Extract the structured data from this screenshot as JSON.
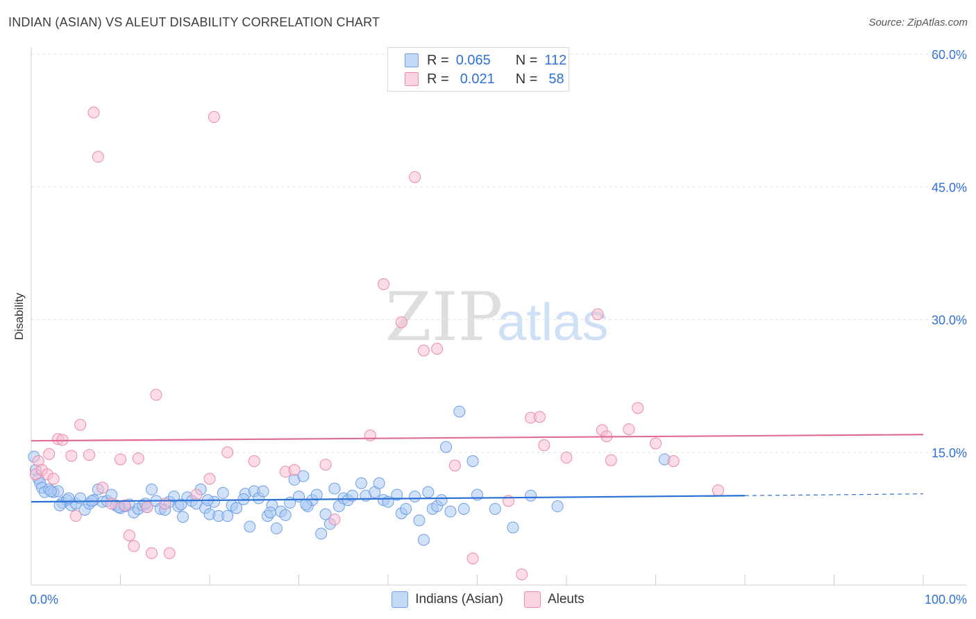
{
  "title": "INDIAN (ASIAN) VS ALEUT DISABILITY CORRELATION CHART",
  "source": "Source: ZipAtlas.com",
  "watermark": {
    "zip": "ZIP",
    "atlas": "atlas"
  },
  "legend": {
    "r_label": "R =",
    "n_label": "N =",
    "rows": [
      {
        "r": "0.065",
        "n": "112",
        "color": "#a9c8f2",
        "border": "#6d9ee6"
      },
      {
        "r": "0.021",
        "n": "58",
        "color": "#f7bfd3",
        "border": "#e98aaa"
      }
    ]
  },
  "bottom_legend": [
    "Indians (Asian)",
    "Aleuts"
  ],
  "chart_data": {
    "type": "scatter",
    "title": "INDIAN (ASIAN) VS ALEUT DISABILITY CORRELATION CHART",
    "xlabel": "",
    "ylabel": "Disability",
    "xlim": [
      0,
      100
    ],
    "ylim": [
      0,
      60
    ],
    "x_tick_labels": [
      "0.0%",
      "100.0%"
    ],
    "y_ticks": [
      15,
      30,
      45,
      60
    ],
    "y_tick_labels": [
      "15.0%",
      "30.0%",
      "45.0%",
      "60.0%"
    ],
    "grid": true,
    "legend_position": "top-center",
    "series": [
      {
        "name": "Indians (Asian)",
        "color": "#6d9ee6",
        "fill": "#a9c8f2",
        "line_color": "#2a6fd4",
        "trend": {
          "x0": 0,
          "y0": 9.4,
          "x1": 80,
          "y1": 10.1,
          "dash_to": 100,
          "dash_y": 10.3
        },
        "points": [
          [
            0.3,
            14.5
          ],
          [
            0.5,
            13.0
          ],
          [
            0.8,
            12.0
          ],
          [
            1.0,
            11.5
          ],
          [
            1.2,
            11.0
          ],
          [
            1.5,
            10.5
          ],
          [
            2.0,
            10.8
          ],
          [
            2.5,
            10.5
          ],
          [
            3.0,
            10.6
          ],
          [
            3.5,
            9.3
          ],
          [
            4.0,
            9.6
          ],
          [
            4.5,
            9.0
          ],
          [
            5.0,
            9.2
          ],
          [
            5.5,
            9.8
          ],
          [
            6.0,
            8.5
          ],
          [
            6.5,
            9.2
          ],
          [
            7.0,
            9.6
          ],
          [
            7.5,
            10.8
          ],
          [
            8.0,
            9.4
          ],
          [
            8.5,
            9.5
          ],
          [
            9.0,
            10.2
          ],
          [
            9.5,
            9.0
          ],
          [
            10.0,
            8.7
          ],
          [
            10.5,
            8.9
          ],
          [
            11.0,
            9.1
          ],
          [
            11.5,
            8.2
          ],
          [
            12.0,
            8.6
          ],
          [
            12.5,
            9.0
          ],
          [
            13.0,
            8.8
          ],
          [
            13.5,
            10.8
          ],
          [
            14.0,
            9.5
          ],
          [
            14.5,
            8.6
          ],
          [
            15.0,
            8.5
          ],
          [
            15.5,
            9.4
          ],
          [
            16.0,
            10.0
          ],
          [
            16.5,
            8.9
          ],
          [
            17.0,
            7.7
          ],
          [
            17.5,
            9.9
          ],
          [
            18.0,
            9.5
          ],
          [
            18.5,
            9.2
          ],
          [
            19.0,
            10.8
          ],
          [
            19.5,
            8.7
          ],
          [
            20.0,
            8.0
          ],
          [
            20.5,
            9.4
          ],
          [
            21.0,
            7.8
          ],
          [
            21.5,
            10.4
          ],
          [
            22.0,
            7.8
          ],
          [
            22.5,
            9.0
          ],
          [
            23.0,
            8.7
          ],
          [
            24.0,
            10.3
          ],
          [
            24.5,
            6.6
          ],
          [
            25.0,
            10.6
          ],
          [
            25.5,
            9.8
          ],
          [
            26.0,
            10.6
          ],
          [
            26.5,
            7.8
          ],
          [
            27.0,
            9.0
          ],
          [
            27.5,
            6.4
          ],
          [
            28.0,
            8.3
          ],
          [
            28.5,
            7.9
          ],
          [
            29.0,
            9.3
          ],
          [
            29.5,
            11.9
          ],
          [
            30.0,
            10.0
          ],
          [
            30.5,
            12.3
          ],
          [
            31.0,
            8.9
          ],
          [
            31.5,
            9.6
          ],
          [
            32.0,
            10.2
          ],
          [
            32.5,
            5.8
          ],
          [
            33.0,
            8.0
          ],
          [
            33.5,
            6.9
          ],
          [
            34.0,
            10.9
          ],
          [
            34.5,
            8.9
          ],
          [
            35.0,
            9.8
          ],
          [
            35.5,
            9.6
          ],
          [
            37.0,
            11.5
          ],
          [
            37.5,
            10.1
          ],
          [
            38.5,
            10.5
          ],
          [
            39.0,
            11.5
          ],
          [
            39.5,
            9.6
          ],
          [
            40.0,
            9.4
          ],
          [
            41.0,
            10.2
          ],
          [
            41.5,
            8.1
          ],
          [
            42.0,
            8.6
          ],
          [
            43.0,
            10.0
          ],
          [
            43.5,
            7.3
          ],
          [
            44.0,
            5.1
          ],
          [
            44.5,
            10.5
          ],
          [
            45.0,
            8.6
          ],
          [
            45.5,
            8.9
          ],
          [
            46.0,
            9.6
          ],
          [
            46.5,
            15.6
          ],
          [
            47.0,
            8.3
          ],
          [
            48.0,
            19.6
          ],
          [
            48.5,
            8.6
          ],
          [
            49.5,
            14.0
          ],
          [
            50.0,
            10.2
          ],
          [
            52.0,
            8.6
          ],
          [
            54.0,
            6.5
          ],
          [
            56.0,
            10.1
          ],
          [
            59.0,
            8.9
          ],
          [
            71.0,
            14.2
          ],
          [
            2.2,
            10.6
          ],
          [
            3.2,
            9.0
          ],
          [
            4.2,
            9.8
          ],
          [
            6.8,
            9.5
          ],
          [
            9.8,
            8.8
          ],
          [
            12.8,
            9.2
          ],
          [
            16.8,
            9.1
          ],
          [
            19.8,
            9.6
          ],
          [
            23.8,
            9.7
          ],
          [
            26.8,
            8.2
          ],
          [
            30.8,
            9.1
          ],
          [
            36.0,
            10.1
          ]
        ]
      },
      {
        "name": "Aleuts",
        "color": "#e98aaa",
        "fill": "#f7bfd3",
        "line_color": "#e06b95",
        "trend": {
          "x0": 0,
          "y0": 16.3,
          "x1": 100,
          "y1": 17.0
        },
        "points": [
          [
            0.5,
            12.5
          ],
          [
            0.8,
            14.0
          ],
          [
            1.2,
            13.0
          ],
          [
            1.8,
            12.5
          ],
          [
            2.0,
            14.8
          ],
          [
            2.5,
            12.0
          ],
          [
            3.0,
            16.5
          ],
          [
            3.5,
            16.4
          ],
          [
            4.5,
            14.6
          ],
          [
            5.0,
            7.8
          ],
          [
            5.5,
            18.1
          ],
          [
            6.5,
            14.7
          ],
          [
            7.0,
            53.4
          ],
          [
            7.5,
            48.4
          ],
          [
            8.0,
            11.0
          ],
          [
            9.0,
            9.2
          ],
          [
            10.0,
            14.2
          ],
          [
            10.5,
            9.0
          ],
          [
            11.0,
            5.6
          ],
          [
            11.5,
            4.4
          ],
          [
            12.0,
            14.3
          ],
          [
            13.0,
            8.8
          ],
          [
            13.5,
            3.6
          ],
          [
            14.0,
            21.5
          ],
          [
            15.0,
            9.2
          ],
          [
            15.5,
            3.6
          ],
          [
            18.5,
            10.2
          ],
          [
            20.0,
            12.0
          ],
          [
            20.5,
            52.9
          ],
          [
            22.0,
            15.0
          ],
          [
            25.0,
            14.0
          ],
          [
            28.5,
            12.8
          ],
          [
            29.5,
            13.0
          ],
          [
            33.0,
            13.6
          ],
          [
            34.0,
            7.4
          ],
          [
            38.0,
            16.9
          ],
          [
            39.5,
            34.0
          ],
          [
            41.5,
            29.7
          ],
          [
            43.0,
            46.1
          ],
          [
            44.0,
            26.5
          ],
          [
            45.5,
            26.7
          ],
          [
            47.5,
            13.5
          ],
          [
            49.5,
            3.0
          ],
          [
            53.5,
            9.5
          ],
          [
            55.0,
            1.2
          ],
          [
            56.0,
            18.9
          ],
          [
            57.0,
            19.0
          ],
          [
            57.5,
            15.8
          ],
          [
            60.0,
            14.4
          ],
          [
            63.5,
            30.6
          ],
          [
            64.0,
            17.5
          ],
          [
            64.5,
            16.8
          ],
          [
            65.0,
            14.1
          ],
          [
            67.0,
            17.6
          ],
          [
            68.0,
            20.0
          ],
          [
            70.0,
            16.0
          ],
          [
            72.0,
            14.0
          ],
          [
            77.0,
            10.7
          ]
        ]
      }
    ]
  }
}
